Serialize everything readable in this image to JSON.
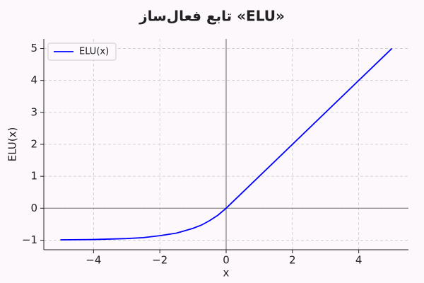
{
  "chart_data": {
    "type": "line",
    "title": "تابع فعال‌ساز «ELU»",
    "x_label": "x",
    "y_label": "ELU(x)",
    "x": [
      -5,
      -4,
      -3,
      -2.5,
      -2,
      -1.5,
      -1,
      -0.75,
      -0.5,
      -0.25,
      0,
      5
    ],
    "series": [
      {
        "name": "ELU(x)",
        "color": "#0000ff",
        "values": [
          -0.99,
          -0.98,
          -0.95,
          -0.92,
          -0.86,
          -0.78,
          -0.63,
          -0.53,
          -0.39,
          -0.22,
          0,
          5
        ]
      }
    ],
    "xlim": [
      -5.5,
      5.5
    ],
    "ylim": [
      -1.3,
      5.3
    ],
    "xticks": [
      {
        "value": -4,
        "label": "−4"
      },
      {
        "value": -2,
        "label": "−2"
      },
      0,
      2,
      4
    ],
    "yticks": [
      {
        "value": -1,
        "label": "−1"
      },
      0,
      1,
      2,
      3,
      4,
      5
    ],
    "grid": true,
    "legend": "upper-left"
  }
}
